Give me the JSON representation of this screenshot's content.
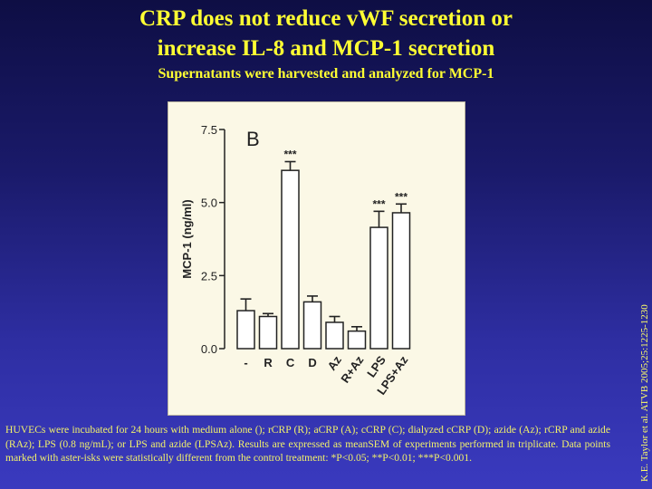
{
  "slide": {
    "title_line1": "CRP does not reduce vWF secretion or",
    "title_line2": "increase IL-8 and MCP-1 secretion",
    "subtitle": "Supernatants were harvested and analyzed for MCP-1",
    "caption": "HUVECs were incubated for 24 hours with medium alone (); rCRP (R); aCRP (A); cCRP (C); dialyzed cCRP (D); azide (Az); rCRP and azide (RAz); LPS (0.8 ng/mL); or LPS and azide (LPSAz). Results are expressed as meanSEM of experiments performed in triplicate. Data points marked with aster-isks were statistically different from the control treatment: *P<0.05; **P<0.01; ***P<0.001.",
    "citation": "K.E. Taylor et al. ATVB 2005;25:1225-1230"
  },
  "colors": {
    "title": "#ffff33",
    "caption": "#f2f26a",
    "chart_background": "#fbf8e6"
  },
  "chart_data": {
    "type": "bar",
    "panel_label": "B",
    "ylabel": "MCP-1 (ng/ml)",
    "xlabel": "",
    "ylim": [
      0,
      7.5
    ],
    "yticks": [
      "0.0",
      "2.5",
      "5.0",
      "7.5"
    ],
    "categories": [
      "-",
      "R",
      "C",
      "D",
      "Az",
      "R+Az",
      "LPS",
      "LPS+Az"
    ],
    "values": [
      1.3,
      1.1,
      6.1,
      1.6,
      0.9,
      0.6,
      4.15,
      4.65
    ],
    "errors": [
      0.4,
      0.1,
      0.3,
      0.2,
      0.2,
      0.15,
      0.55,
      0.3
    ],
    "annotations": [
      "",
      "",
      "***",
      "",
      "",
      "",
      "***",
      "***"
    ],
    "grid": false,
    "legend": "none"
  }
}
